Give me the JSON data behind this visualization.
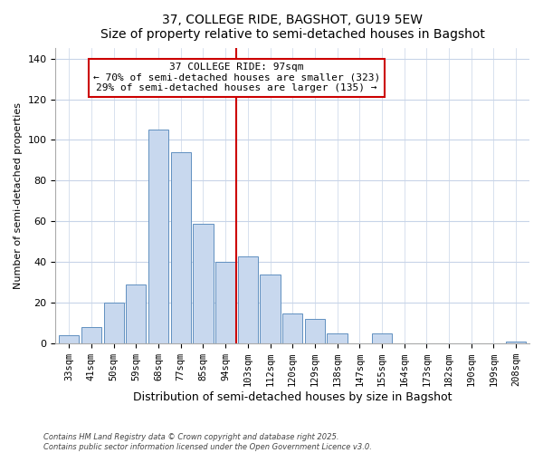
{
  "title_line1": "37, COLLEGE RIDE, BAGSHOT, GU19 5EW",
  "title_line2": "Size of property relative to semi-detached houses in Bagshot",
  "xlabel": "Distribution of semi-detached houses by size in Bagshot",
  "ylabel": "Number of semi-detached properties",
  "bar_labels": [
    "33sqm",
    "41sqm",
    "50sqm",
    "59sqm",
    "68sqm",
    "77sqm",
    "85sqm",
    "94sqm",
    "103sqm",
    "112sqm",
    "120sqm",
    "129sqm",
    "138sqm",
    "147sqm",
    "155sqm",
    "164sqm",
    "173sqm",
    "182sqm",
    "190sqm",
    "199sqm",
    "208sqm"
  ],
  "bar_values": [
    4,
    8,
    20,
    29,
    105,
    94,
    59,
    40,
    43,
    34,
    15,
    12,
    5,
    0,
    5,
    0,
    0,
    0,
    0,
    0,
    1
  ],
  "bar_color": "#c8d8ee",
  "bar_edge_color": "#6090c0",
  "reference_line_index": 7,
  "reference_line_color": "#cc0000",
  "annotation_title": "37 COLLEGE RIDE: 97sqm",
  "annotation_line2": "← 70% of semi-detached houses are smaller (323)",
  "annotation_line3": "29% of semi-detached houses are larger (135) →",
  "annotation_box_color": "#ffffff",
  "annotation_box_edge": "#cc0000",
  "ylim": [
    0,
    145
  ],
  "yticks": [
    0,
    20,
    40,
    60,
    80,
    100,
    120,
    140
  ],
  "footnote_line1": "Contains HM Land Registry data © Crown copyright and database right 2025.",
  "footnote_line2": "Contains public sector information licensed under the Open Government Licence v3.0.",
  "background_color": "#ffffff",
  "grid_color": "#c8d4e8"
}
